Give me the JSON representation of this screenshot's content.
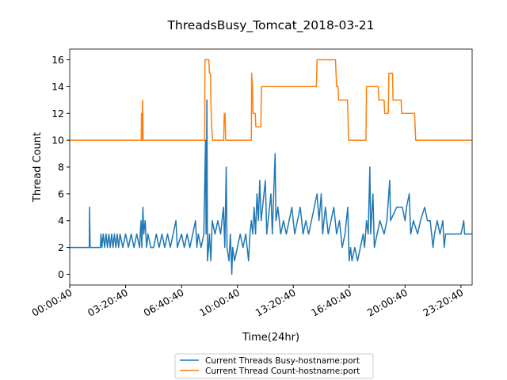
{
  "chart_data": {
    "type": "line",
    "title": "ThreadsBusy_Tomcat_2018-03-21",
    "x_label": "Time(24hr)",
    "y_label": "Thread Count",
    "xlim": [
      0,
      1440
    ],
    "ylim": [
      -0.8,
      16.8
    ],
    "xticks": [
      {
        "value": 0,
        "label": "00:00:40"
      },
      {
        "value": 200,
        "label": "03:20:40"
      },
      {
        "value": 400,
        "label": "06:40:40"
      },
      {
        "value": 600,
        "label": "10:00:40"
      },
      {
        "value": 800,
        "label": "13:20:40"
      },
      {
        "value": 1000,
        "label": "16:40:40"
      },
      {
        "value": 1200,
        "label": "20:00:40"
      },
      {
        "value": 1400,
        "label": "23:20:40"
      }
    ],
    "yticks": [
      0,
      2,
      4,
      6,
      8,
      10,
      12,
      14,
      16
    ],
    "legend": "lower center",
    "series": [
      {
        "name": "Current Threads Busy-hostname:port",
        "color": "#1f77b4",
        "x": [
          0,
          70,
          71,
          73,
          110,
          112,
          115,
          120,
          125,
          130,
          135,
          140,
          145,
          150,
          155,
          160,
          165,
          170,
          175,
          180,
          190,
          200,
          210,
          220,
          230,
          240,
          250,
          255,
          258,
          262,
          265,
          270,
          275,
          280,
          290,
          300,
          310,
          320,
          330,
          340,
          350,
          360,
          370,
          380,
          385,
          400,
          410,
          420,
          430,
          440,
          450,
          455,
          460,
          470,
          480,
          486,
          488,
          491,
          493,
          497,
          500,
          505,
          510,
          520,
          530,
          540,
          550,
          555,
          560,
          563,
          570,
          575,
          580,
          583,
          590,
          600,
          610,
          620,
          630,
          640,
          645,
          650,
          655,
          660,
          665,
          670,
          675,
          680,
          685,
          690,
          700,
          705,
          710,
          720,
          725,
          735,
          738,
          745,
          755,
          765,
          775,
          785,
          795,
          805,
          815,
          825,
          835,
          845,
          855,
          865,
          875,
          885,
          892,
          900,
          905,
          915,
          925,
          935,
          945,
          955,
          965,
          975,
          985,
          995,
          1000,
          1005,
          1010,
          1020,
          1030,
          1040,
          1050,
          1055,
          1062,
          1068,
          1074,
          1077,
          1085,
          1090,
          1100,
          1110,
          1125,
          1135,
          1145,
          1148,
          1170,
          1190,
          1200,
          1205,
          1215,
          1220,
          1230,
          1245,
          1255,
          1270,
          1280,
          1290,
          1295,
          1300,
          1305,
          1315,
          1325,
          1335,
          1340,
          1345,
          1400,
          1410,
          1413,
          1440
        ],
        "values": [
          2,
          2,
          5,
          2,
          2,
          3,
          2,
          3,
          2,
          3,
          2,
          3,
          2,
          3,
          2,
          3,
          2,
          3,
          2,
          3,
          2,
          3,
          2,
          3,
          2,
          3,
          2,
          4,
          2,
          5,
          3,
          4,
          2,
          3,
          2,
          2,
          3,
          2,
          3,
          2,
          3,
          2,
          3,
          4,
          2,
          3,
          2,
          3,
          2,
          3,
          4,
          2,
          3,
          2,
          3,
          10,
          3,
          13,
          1,
          2,
          3,
          1,
          4,
          3,
          4,
          3,
          5,
          2,
          8,
          2,
          1,
          3,
          0,
          2,
          1,
          2,
          3,
          2,
          3,
          1,
          3,
          4,
          3,
          5,
          3,
          6,
          4,
          7,
          4,
          5,
          7,
          3,
          4,
          6,
          3,
          9,
          4,
          5,
          3,
          4,
          3,
          4,
          5,
          3,
          4,
          5,
          3,
          4,
          3,
          4,
          5,
          6,
          4,
          6,
          3,
          5,
          3,
          4,
          5,
          3,
          4,
          2,
          3,
          5,
          1,
          2,
          1,
          2,
          1,
          2,
          3,
          2,
          4,
          3,
          8,
          3,
          6,
          2,
          3,
          4,
          3,
          4,
          7,
          4,
          5,
          5,
          4,
          5,
          6,
          3,
          4,
          3,
          4,
          5,
          4,
          4,
          3,
          2,
          3,
          4,
          3,
          4,
          2,
          3,
          3,
          4,
          3,
          3
        ]
      },
      {
        "name": "Current Thread Count-hostname:port",
        "color": "#ff7f0e",
        "x": [
          0,
          256,
          257,
          259,
          261,
          263,
          483,
          484,
          498,
          500,
          504,
          505,
          508,
          511,
          551,
          553,
          556,
          558,
          650,
          651,
          654,
          656,
          664,
          666,
          684,
          686,
          883,
          885,
          951,
          953,
          955,
          960,
          962,
          994,
          998,
          1060,
          1062,
          1104,
          1106,
          1125,
          1127,
          1140,
          1142,
          1155,
          1157,
          1186,
          1188,
          1234,
          1236,
          1238,
          1440
        ],
        "values": [
          10,
          10,
          12,
          10,
          13,
          10,
          10,
          16,
          16,
          15,
          15,
          13,
          11,
          10,
          10,
          12,
          12,
          10,
          10,
          15,
          14,
          12,
          12,
          11,
          11,
          14,
          14,
          16,
          16,
          15,
          14,
          14,
          13,
          13,
          10,
          10,
          14,
          14,
          13,
          13,
          12,
          12,
          15,
          15,
          13,
          13,
          12,
          12,
          11,
          10,
          10
        ]
      }
    ]
  }
}
